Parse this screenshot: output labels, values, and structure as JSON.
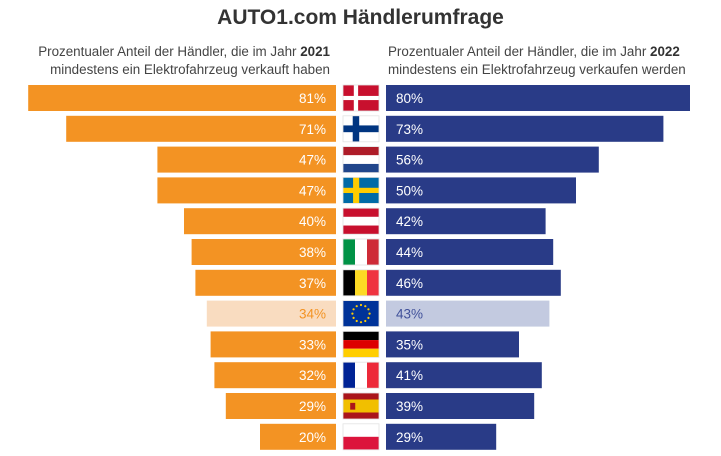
{
  "title": "AUTO1.com Händlerumfrage",
  "subtitle_left": {
    "prefix": "Prozentualer Anteil der Händler, die im Jahr ",
    "year": "2021",
    "line2": "mindestens ein Elektrofahrzeug verkauft haben"
  },
  "subtitle_right": {
    "prefix": "Prozentualer Anteil der Händler, die im Jahr ",
    "year": "2022",
    "line2": "mindestens ein Elektrofahrzeug verkaufen werden"
  },
  "colors": {
    "orange": "#f39323",
    "orange_light": "#f9dcc0",
    "blue": "#293b87",
    "blue_light": "#c3cae0",
    "label_light_left": "#f39323",
    "label_light_right": "#41519a"
  },
  "chart_data": {
    "type": "bar",
    "orientation": "horizontal-butterfly",
    "title": "AUTO1.com Händlerumfrage",
    "xlim": [
      0,
      100
    ],
    "series": [
      {
        "name": "Prozentualer Anteil der Händler, die im Jahr 2021 mindestens ein Elektrofahrzeug verkauft haben",
        "side": "left",
        "values": [
          81,
          71,
          47,
          47,
          40,
          38,
          37,
          34,
          33,
          32,
          29,
          20
        ]
      },
      {
        "name": "Prozentualer Anteil der Händler, die im Jahr 2022 mindestens ein Elektrofahrzeug verkaufen werden",
        "side": "right",
        "values": [
          80,
          73,
          56,
          50,
          42,
          44,
          46,
          43,
          35,
          41,
          39,
          29
        ]
      }
    ],
    "rows": [
      {
        "flag": "denmark-flag",
        "highlight": false
      },
      {
        "flag": "finland-flag",
        "highlight": false
      },
      {
        "flag": "netherlands-flag",
        "highlight": false
      },
      {
        "flag": "sweden-flag",
        "highlight": false
      },
      {
        "flag": "austria-flag",
        "highlight": false
      },
      {
        "flag": "italy-flag",
        "highlight": false
      },
      {
        "flag": "belgium-flag",
        "highlight": false
      },
      {
        "flag": "eu-flag",
        "highlight": true
      },
      {
        "flag": "germany-flag",
        "highlight": false
      },
      {
        "flag": "france-flag",
        "highlight": false
      },
      {
        "flag": "spain-flag",
        "highlight": false
      },
      {
        "flag": "poland-flag",
        "highlight": false
      }
    ],
    "labels_left": [
      "81%",
      "71%",
      "47%",
      "47%",
      "40%",
      "38%",
      "37%",
      "34%",
      "33%",
      "32%",
      "29%",
      "20%"
    ],
    "labels_right": [
      "80%",
      "73%",
      "56%",
      "50%",
      "42%",
      "44%",
      "46%",
      "43%",
      "35%",
      "41%",
      "39%",
      "29%"
    ]
  }
}
